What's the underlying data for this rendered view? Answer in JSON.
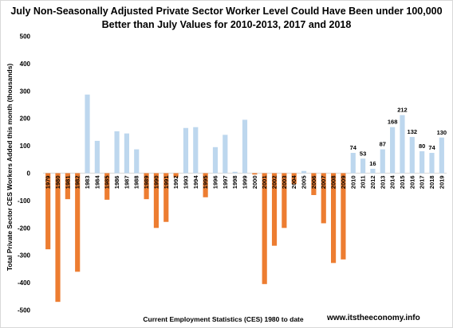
{
  "chart_data": {
    "type": "bar",
    "title_line1": "July Non-Seasonally Adjusted Private Sector Worker Level Could Have Been under 100,000",
    "title_line2": "Better than July Values for 2010-2013, 2017 and 2018",
    "ylabel": "Total Private Sector CES Workers Added this month (thousands)",
    "xlabel": "Current Employment Statistics (CES) 1980 to date",
    "watermark": "www.itstheeconomy.info",
    "ylim": [
      -500,
      500
    ],
    "yticks": [
      500,
      400,
      300,
      200,
      100,
      0,
      -100,
      -200,
      -300,
      -400,
      -500
    ],
    "grid": false,
    "colors": {
      "positive": "#bdd7ee",
      "negative": "#ed7d31"
    },
    "categories": [
      "1979",
      "1980",
      "1981",
      "1982",
      "1983",
      "1984",
      "1985",
      "1986",
      "1987",
      "1988",
      "1989",
      "1990",
      "1991",
      "1992",
      "1993",
      "1994",
      "1995",
      "1996",
      "1997",
      "1998",
      "1999",
      "2000",
      "2001",
      "2002",
      "2003",
      "2004",
      "2005",
      "2006",
      "2007",
      "2008",
      "2009",
      "2010",
      "2011",
      "2012",
      "2013",
      "2014",
      "2015",
      "2016",
      "2017",
      "2018",
      "2019"
    ],
    "values": [
      -278,
      -470,
      -95,
      -360,
      287,
      118,
      -97,
      153,
      145,
      87,
      -95,
      -200,
      -178,
      -15,
      165,
      168,
      -88,
      95,
      140,
      5,
      195,
      -5,
      -405,
      -265,
      -200,
      -40,
      8,
      -80,
      -183,
      -328,
      -315,
      74,
      53,
      16,
      87,
      168,
      212,
      132,
      80,
      74,
      130
    ],
    "data_labels": {
      "2010": "74",
      "2011": "53",
      "2012": "16",
      "2013": "87",
      "2014": "168",
      "2015": "212",
      "2016": "132",
      "2017": "80",
      "2018": "74",
      "2019": "130"
    }
  }
}
